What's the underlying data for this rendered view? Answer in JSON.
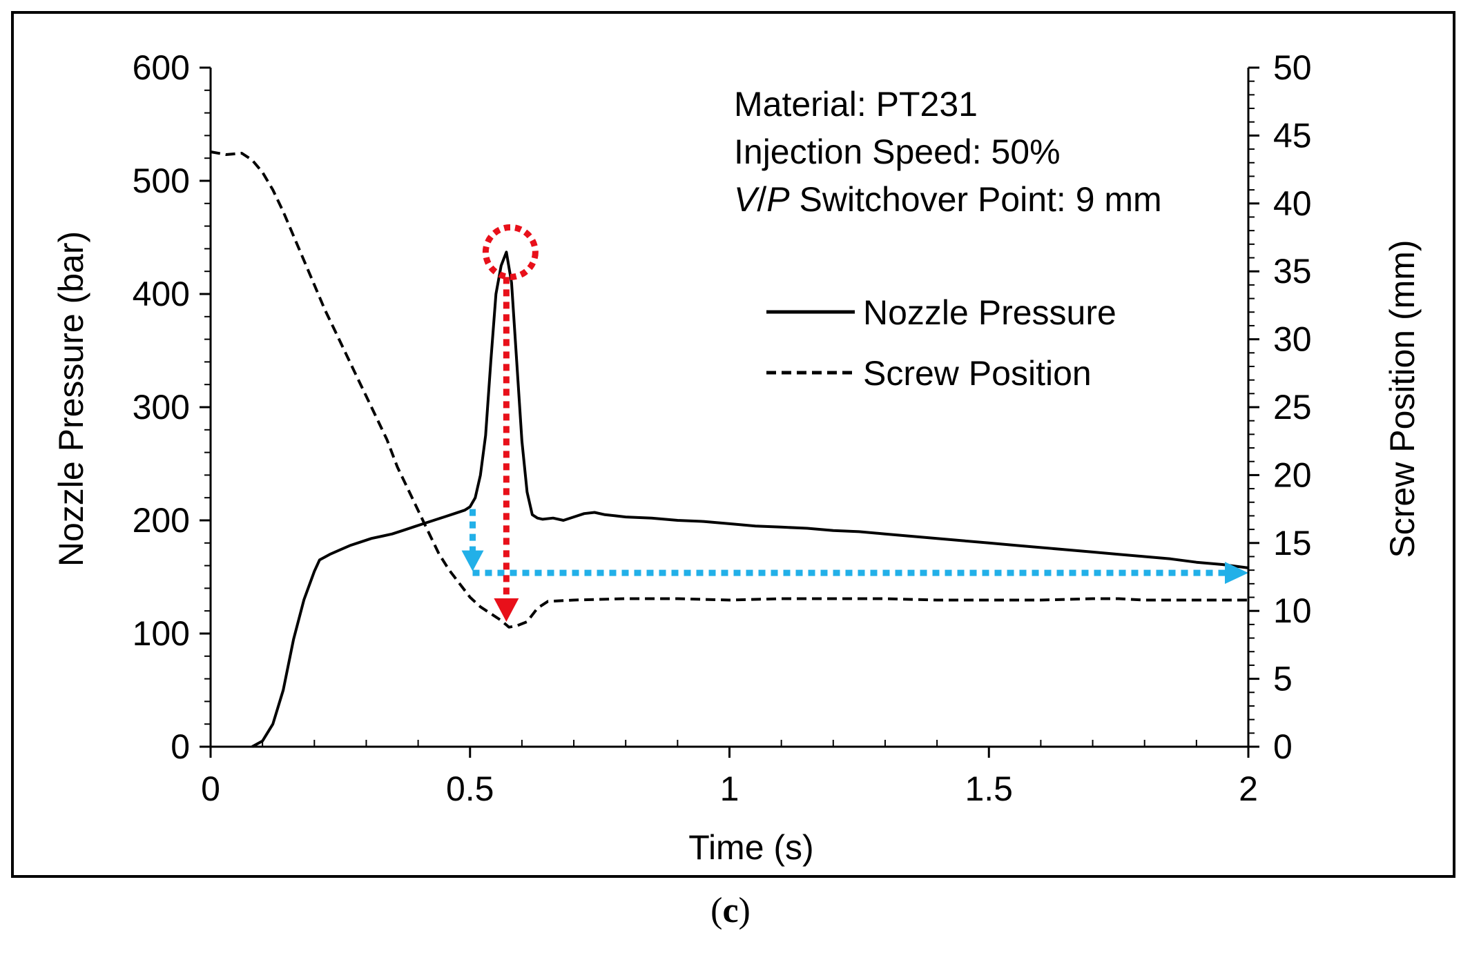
{
  "caption": {
    "open": "(",
    "letter": "c",
    "close": ")"
  },
  "annotations": {
    "material": "Material: PT231",
    "speed": "Injection Speed: 50%",
    "vp_italic_v": "V",
    "vp_slash": "/",
    "vp_italic_p": "P",
    "vp_rest": " Switchover Point: 9 mm"
  },
  "colors": {
    "arrow_blue": "#22b0e8",
    "arrow_red": "#e8101a",
    "line": "#000000"
  },
  "chart_data": {
    "type": "line",
    "title": "",
    "xlabel": "Time (s)",
    "ylabel": "Nozzle Pressure (bar)",
    "y2label": "Screw Position (mm)",
    "xlim": [
      0,
      2
    ],
    "ylim": [
      0,
      600
    ],
    "y2lim": [
      0,
      50
    ],
    "x_ticks": [
      "0",
      "0.5",
      "1",
      "1.5",
      "2"
    ],
    "x_tick_values": [
      0,
      0.5,
      1,
      1.5,
      2
    ],
    "y_ticks": [
      "0",
      "100",
      "200",
      "300",
      "400",
      "500",
      "600"
    ],
    "y_tick_values": [
      0,
      100,
      200,
      300,
      400,
      500,
      600
    ],
    "y2_ticks": [
      "0",
      "5",
      "10",
      "15",
      "20",
      "25",
      "30",
      "35",
      "40",
      "45",
      "50"
    ],
    "y2_tick_values": [
      0,
      5,
      10,
      15,
      20,
      25,
      30,
      35,
      40,
      45,
      50
    ],
    "legend_position": "right-middle",
    "series": [
      {
        "name": "Nozzle Pressure",
        "axis": "left",
        "style": "solid",
        "x": [
          0.08,
          0.1,
          0.12,
          0.14,
          0.16,
          0.18,
          0.2,
          0.21,
          0.23,
          0.25,
          0.27,
          0.29,
          0.31,
          0.33,
          0.35,
          0.37,
          0.39,
          0.41,
          0.43,
          0.45,
          0.47,
          0.49,
          0.5,
          0.51,
          0.52,
          0.53,
          0.54,
          0.55,
          0.56,
          0.57,
          0.58,
          0.59,
          0.6,
          0.61,
          0.62,
          0.63,
          0.64,
          0.66,
          0.68,
          0.7,
          0.72,
          0.74,
          0.76,
          0.78,
          0.8,
          0.85,
          0.9,
          0.95,
          1.0,
          1.05,
          1.1,
          1.15,
          1.2,
          1.25,
          1.3,
          1.35,
          1.4,
          1.45,
          1.5,
          1.55,
          1.6,
          1.65,
          1.7,
          1.75,
          1.8,
          1.85,
          1.9,
          1.95,
          2.0
        ],
        "y": [
          0,
          5,
          20,
          50,
          95,
          130,
          155,
          165,
          170,
          174,
          178,
          181,
          184,
          186,
          188,
          191,
          194,
          197,
          200,
          203,
          206,
          209,
          212,
          220,
          240,
          275,
          340,
          400,
          425,
          437,
          410,
          340,
          270,
          225,
          205,
          202,
          201,
          202,
          200,
          203,
          206,
          207,
          205,
          204,
          203,
          202,
          200,
          199,
          197,
          195,
          194,
          193,
          191,
          190,
          188,
          186,
          184,
          182,
          180,
          178,
          176,
          174,
          172,
          170,
          168,
          166,
          163,
          161,
          158
        ]
      },
      {
        "name": "Screw Position",
        "axis": "right",
        "style": "dashed",
        "x": [
          0,
          0.03,
          0.06,
          0.08,
          0.1,
          0.12,
          0.14,
          0.16,
          0.18,
          0.2,
          0.22,
          0.24,
          0.26,
          0.28,
          0.3,
          0.32,
          0.34,
          0.36,
          0.38,
          0.4,
          0.42,
          0.44,
          0.46,
          0.48,
          0.5,
          0.52,
          0.54,
          0.56,
          0.575,
          0.59,
          0.61,
          0.63,
          0.65,
          0.7,
          0.8,
          0.9,
          1.0,
          1.1,
          1.2,
          1.3,
          1.4,
          1.5,
          1.6,
          1.7,
          1.75,
          1.8,
          1.9,
          2.0
        ],
        "y": [
          43.8,
          43.6,
          43.7,
          43.2,
          42.3,
          41.0,
          39.4,
          37.6,
          35.8,
          34.0,
          32.2,
          30.6,
          29.0,
          27.4,
          25.8,
          24.2,
          22.6,
          20.6,
          19.0,
          17.4,
          15.8,
          14.2,
          13.0,
          12.0,
          11.0,
          10.3,
          9.8,
          9.3,
          8.8,
          8.9,
          9.2,
          10.2,
          10.7,
          10.8,
          10.9,
          10.9,
          10.8,
          10.9,
          10.9,
          10.9,
          10.8,
          10.8,
          10.8,
          10.9,
          10.9,
          10.8,
          10.8,
          10.8
        ]
      }
    ],
    "markers": {
      "peak_circle": {
        "x": 0.578,
        "y": 437
      },
      "red_arrow": {
        "x": 0.57,
        "from_y": 415,
        "to_y2": 9.2
      },
      "blue_down_arrow": {
        "x": 0.505,
        "from_y": 210,
        "to_y": 160
      },
      "blue_right_arrow": {
        "y2": 12.8,
        "from_x": 0.505,
        "to_x": 2.0
      }
    }
  }
}
